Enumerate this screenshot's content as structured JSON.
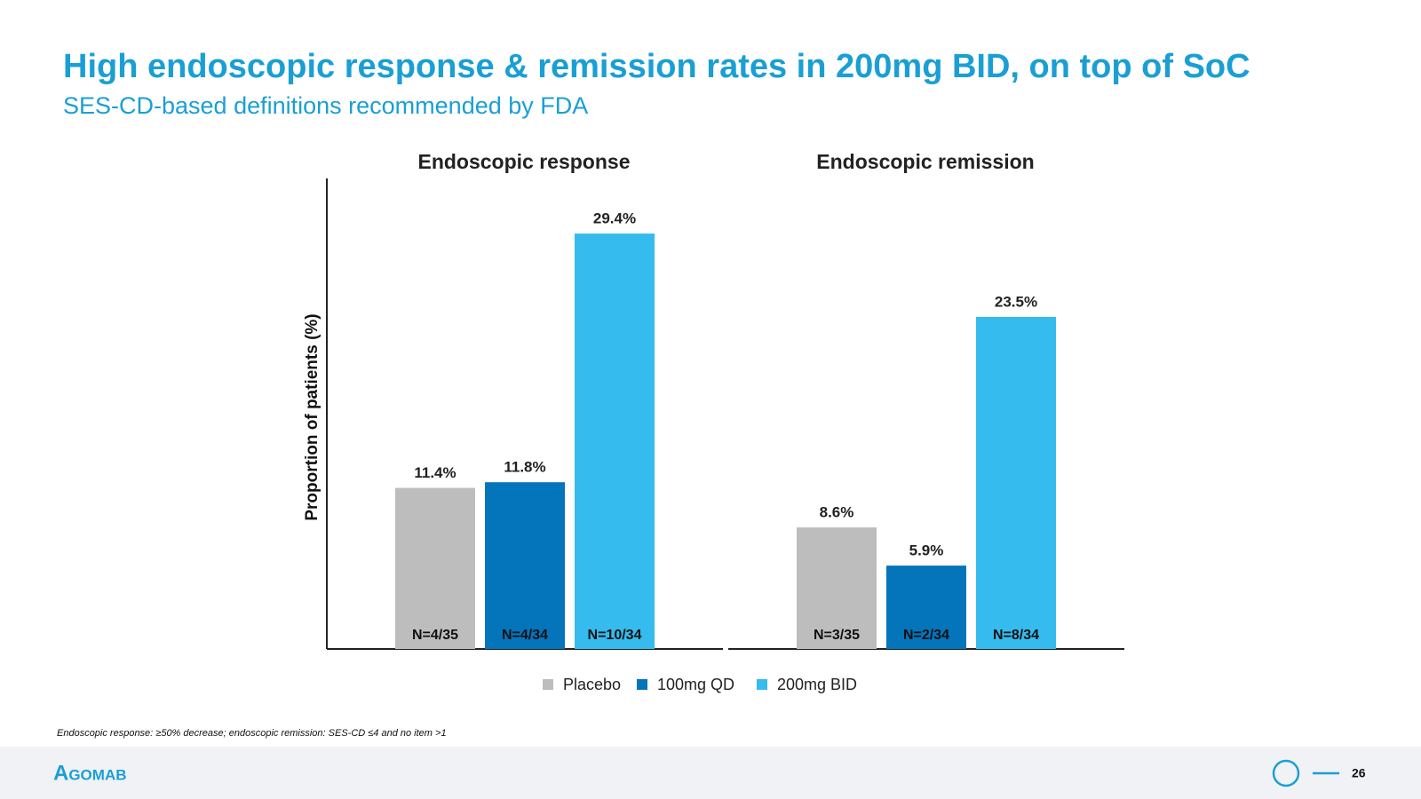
{
  "header": {
    "title": "High endoscopic response & remission rates in 200mg BID, on top of SoC",
    "subtitle": "SES-CD-based definitions recommended by FDA"
  },
  "chart_data": {
    "type": "bar",
    "categories": [
      "Endoscopic response",
      "Endoscopic remission"
    ],
    "y_label": "Proportion of patients (%)",
    "ylim": [
      0,
      33.3
    ],
    "series": [
      {
        "name": "Placebo",
        "color": "#bdbdbd",
        "values": [
          11.4,
          8.6
        ],
        "value_labels": [
          "11.4%",
          "8.6%"
        ],
        "n_labels": [
          "N=4/35",
          "N=3/35"
        ]
      },
      {
        "name": "100mg QD",
        "color": "#0474bb",
        "values": [
          11.8,
          5.9
        ],
        "value_labels": [
          "11.8%",
          "5.9%"
        ],
        "n_labels": [
          "N=4/34",
          "N=2/34"
        ]
      },
      {
        "name": "200mg BID",
        "color": "#35bbed",
        "values": [
          29.4,
          23.5
        ],
        "value_labels": [
          "29.4%",
          "23.5%"
        ],
        "n_labels": [
          "N=10/34",
          "N=8/34"
        ]
      }
    ]
  },
  "footnote": "Endoscopic response: ≥50% decrease; endoscopic remission: SES-CD ≤4 and no item >1",
  "footer": {
    "logo": "Agomab",
    "page": "26"
  }
}
